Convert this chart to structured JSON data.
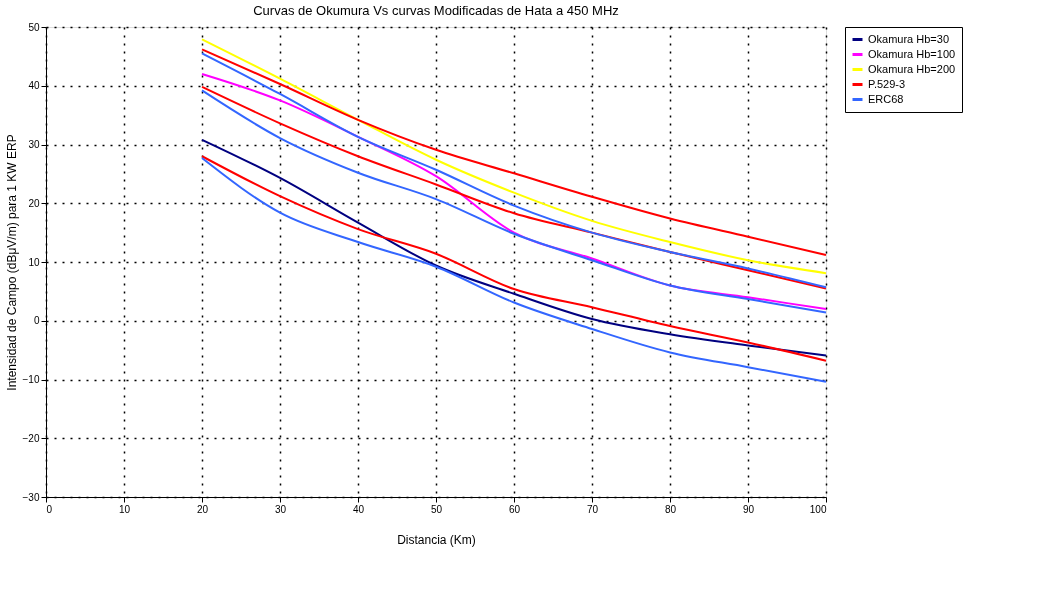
{
  "chart_data": {
    "type": "line",
    "title": "Curvas de Okumura Vs curvas Modificadas de Hata a 450 MHz",
    "xlabel": "Distancia (Km)",
    "ylabel": "Intensidad de Campo (dBμV/m) para 1 KW ERP",
    "x": [
      20,
      30,
      40,
      50,
      60,
      70,
      80,
      90,
      100
    ],
    "series": [
      {
        "name": "Okamura Hb=30",
        "color": "#000080",
        "values": [
          30.8,
          24.3,
          16.7,
          9.4,
          4.6,
          0.3,
          -2.3,
          -4.2,
          -5.9
        ]
      },
      {
        "name": "Okamura Hb=100",
        "color": "#ff00ff",
        "values": [
          42.0,
          37.5,
          31.3,
          24.6,
          15.0,
          10.6,
          6.0,
          4.0,
          2.0
        ]
      },
      {
        "name": "Okamura Hb=200",
        "color": "#ffff00",
        "values": [
          47.9,
          41.2,
          34.2,
          27.4,
          21.8,
          17.0,
          13.4,
          10.3,
          8.1
        ]
      },
      {
        "name": "P.529-3",
        "color": "#ff0000",
        "values": [
          46.2,
          40.3,
          34.2,
          29.1,
          25.1,
          21.1,
          17.4,
          14.3,
          11.2
        ]
      },
      {
        "color": "#ff0000",
        "values": [
          39.8,
          33.6,
          28.0,
          23.2,
          18.3,
          15.0,
          11.7,
          8.6,
          5.5
        ]
      },
      {
        "color": "#ff0000",
        "values": [
          28.0,
          21.2,
          15.6,
          11.4,
          5.4,
          2.3,
          -0.9,
          -3.7,
          -6.8
        ]
      },
      {
        "name": "ERC68",
        "color": "#3366ff",
        "values": [
          45.5,
          38.6,
          31.3,
          25.7,
          19.6,
          15.0,
          11.7,
          8.9,
          5.7
        ]
      },
      {
        "color": "#3366ff",
        "values": [
          39.2,
          31.1,
          25.2,
          20.7,
          14.8,
          10.3,
          6.0,
          3.7,
          1.4
        ]
      },
      {
        "color": "#3366ff",
        "values": [
          27.7,
          18.4,
          13.4,
          9.2,
          3.1,
          -1.4,
          -5.4,
          -7.9,
          -10.4
        ]
      }
    ],
    "xlim": [
      0,
      100
    ],
    "xticks": [
      0,
      10,
      20,
      30,
      40,
      50,
      60,
      70,
      80,
      90,
      100
    ],
    "ylim": [
      -30,
      50
    ],
    "yticks": [
      -30,
      -20,
      -10,
      0,
      10,
      20,
      30,
      40,
      50
    ],
    "grid": true,
    "legend": "right",
    "marker": "none",
    "line_style": "solid"
  }
}
